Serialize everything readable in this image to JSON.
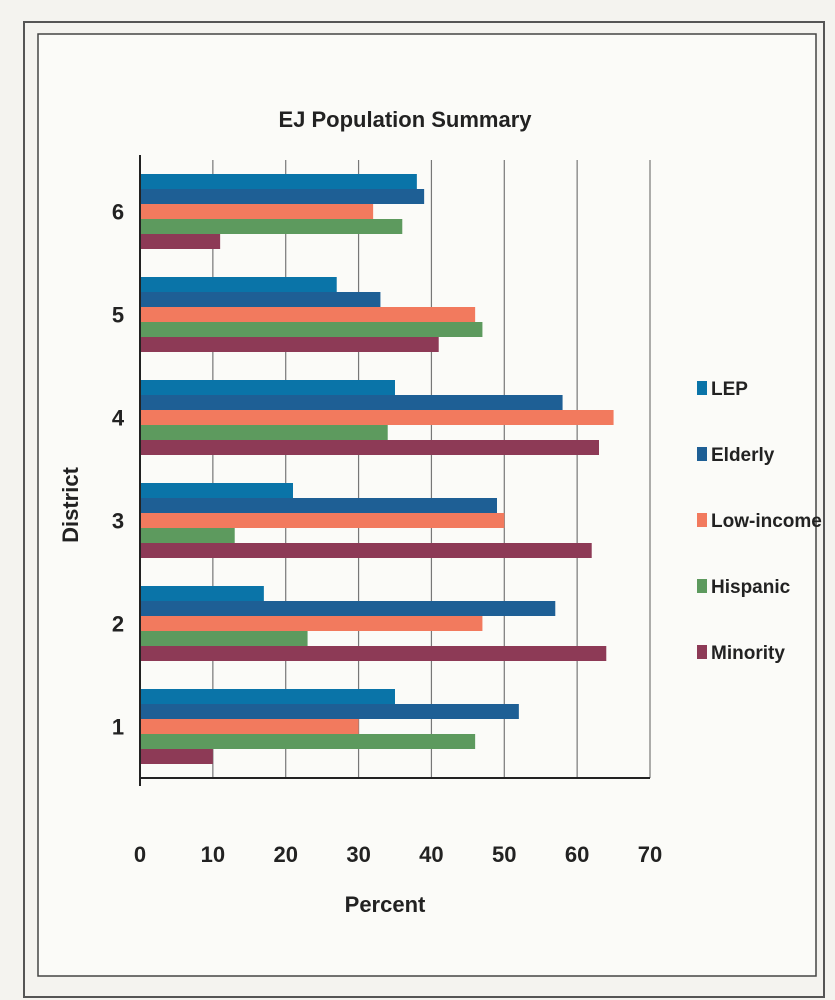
{
  "chart_data": {
    "type": "bar",
    "orientation": "horizontal",
    "title": "EJ Population Summary",
    "xlabel": "Percent",
    "ylabel": "District",
    "categories": [
      "1",
      "2",
      "3",
      "4",
      "5",
      "6"
    ],
    "xlim": [
      0,
      70
    ],
    "x_ticks": [
      "0",
      "10",
      "20",
      "30",
      "40",
      "50",
      "60",
      "70"
    ],
    "grid": "vertical",
    "legend_position": "right",
    "series": [
      {
        "name": "LEP",
        "color": "#0a74a8",
        "values": [
          35,
          17,
          21,
          35,
          27,
          38
        ]
      },
      {
        "name": "Elderly",
        "color": "#1e5f95",
        "values": [
          52,
          57,
          49,
          58,
          33,
          39
        ]
      },
      {
        "name": "Low-income",
        "color": "#f27a5e",
        "values": [
          30,
          47,
          50,
          65,
          46,
          32
        ]
      },
      {
        "name": "Hispanic",
        "color": "#5d9a5e",
        "values": [
          46,
          23,
          13,
          34,
          47,
          36
        ]
      },
      {
        "name": "Minority",
        "color": "#8d3a56",
        "values": [
          10,
          64,
          62,
          63,
          41,
          11
        ]
      }
    ]
  }
}
